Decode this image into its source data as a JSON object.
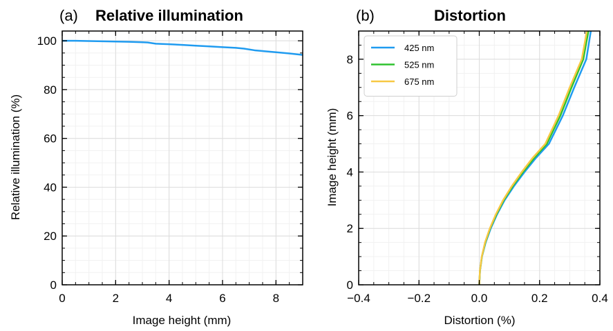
{
  "chart_data": [
    {
      "type": "line",
      "panel_label": "(a)",
      "title": "Relative illumination",
      "xlabel": "Image height (mm)",
      "ylabel": "Relative illumination (%)",
      "xlim": [
        0,
        9
      ],
      "ylim": [
        0,
        104
      ],
      "xticks": [
        0,
        2,
        4,
        6,
        8
      ],
      "yticks": [
        0,
        20,
        40,
        60,
        80,
        100
      ],
      "grid": true,
      "series": [
        {
          "color": "#1f9bf0",
          "x": [
            0,
            0.5,
            1.0,
            1.5,
            2.0,
            2.5,
            3.0,
            3.2,
            3.5,
            4.0,
            4.5,
            5.0,
            5.5,
            6.0,
            6.5,
            6.8,
            7.2,
            7.5,
            8.0,
            8.5,
            9.0
          ],
          "y": [
            100.0,
            100.0,
            99.9,
            99.8,
            99.7,
            99.6,
            99.4,
            99.3,
            98.8,
            98.6,
            98.3,
            98.0,
            97.7,
            97.4,
            97.1,
            96.8,
            96.1,
            95.8,
            95.3,
            94.8,
            94.2
          ]
        }
      ]
    },
    {
      "type": "line",
      "panel_label": "(b)",
      "title": "Distortion",
      "xlabel": "Distortion (%)",
      "ylabel": "Image height (mm)",
      "xlim": [
        -0.4,
        0.4
      ],
      "ylim": [
        0,
        9
      ],
      "xticks": [
        -0.4,
        -0.2,
        0.0,
        0.2,
        0.4
      ],
      "xtick_labels": [
        "−0.4",
        "−0.2",
        "0.0",
        "0.2",
        "0.4"
      ],
      "yticks": [
        0,
        2,
        4,
        6,
        8
      ],
      "grid": true,
      "legend_position": "top-left",
      "series": [
        {
          "name": "425 nm",
          "color": "#1f9bf0",
          "x": [
            0.0,
            0.0025,
            0.0089,
            0.021,
            0.038,
            0.059,
            0.084,
            0.115,
            0.15,
            0.188,
            0.231,
            0.277,
            0.315,
            0.355,
            0.37
          ],
          "y": [
            0.0,
            0.5,
            1.0,
            1.5,
            2.0,
            2.5,
            3.0,
            3.5,
            4.0,
            4.5,
            5.0,
            6.0,
            7.0,
            8.0,
            9.0
          ]
        },
        {
          "name": "525 nm",
          "color": "#2ec22e",
          "x": [
            0.0,
            0.0023,
            0.0086,
            0.02,
            0.036,
            0.057,
            0.081,
            0.111,
            0.145,
            0.182,
            0.224,
            0.269,
            0.306,
            0.345,
            0.362
          ],
          "y": [
            0.0,
            0.5,
            1.0,
            1.5,
            2.0,
            2.5,
            3.0,
            3.5,
            4.0,
            4.5,
            5.0,
            6.0,
            7.0,
            8.0,
            9.0
          ]
        },
        {
          "name": "675 nm",
          "color": "#f7c843",
          "x": [
            0.0,
            0.0022,
            0.0084,
            0.019,
            0.035,
            0.055,
            0.079,
            0.108,
            0.141,
            0.177,
            0.219,
            0.263,
            0.3,
            0.34,
            0.357
          ],
          "y": [
            0.0,
            0.5,
            1.0,
            1.5,
            2.0,
            2.5,
            3.0,
            3.5,
            4.0,
            4.5,
            5.0,
            6.0,
            7.0,
            8.0,
            9.0
          ]
        }
      ]
    }
  ]
}
